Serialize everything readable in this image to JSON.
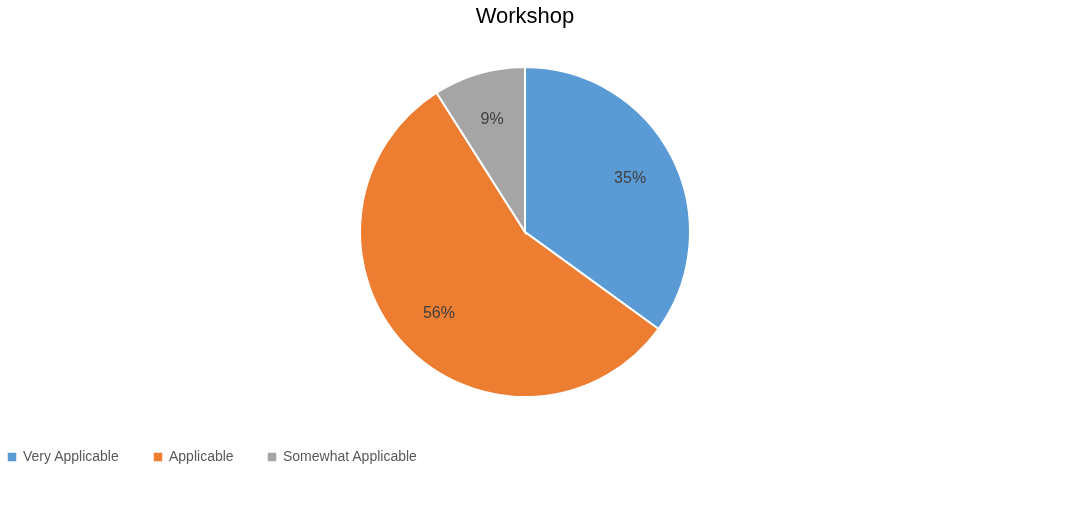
{
  "chart_data": {
    "type": "pie",
    "title": "Workshop",
    "categories": [
      "Very Applicable",
      "Applicable",
      "Somewhat Applicable"
    ],
    "values": [
      35,
      56,
      9
    ],
    "colors": [
      "#5b9bd5",
      "#ed7d31",
      "#a5a5a5"
    ],
    "value_labels": [
      "35%",
      "56%",
      "9%"
    ],
    "legend": "bottom"
  }
}
